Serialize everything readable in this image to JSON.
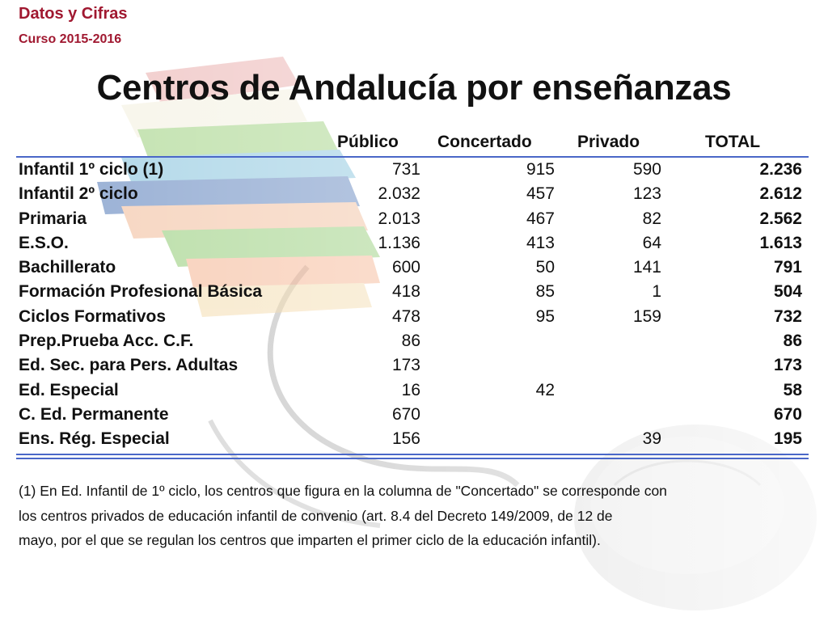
{
  "header": {
    "brand_title": "Datos y Cifras",
    "brand_course": "Curso 2015-2016",
    "page_title": "Centros de Andalucía por enseñanzas"
  },
  "table": {
    "columns": [
      "Público",
      "Concertado",
      "Privado",
      "TOTAL"
    ],
    "rows": [
      {
        "label": "Infantil 1º ciclo (1)",
        "publico": "731",
        "concertado": "915",
        "privado": "590",
        "total": "2.236"
      },
      {
        "label": "Infantil 2º ciclo",
        "publico": "2.032",
        "concertado": "457",
        "privado": "123",
        "total": "2.612"
      },
      {
        "label": "Primaria",
        "publico": "2.013",
        "concertado": "467",
        "privado": "82",
        "total": "2.562"
      },
      {
        "label": "E.S.O.",
        "publico": "1.136",
        "concertado": "413",
        "privado": "64",
        "total": "1.613"
      },
      {
        "label": "Bachillerato",
        "publico": "600",
        "concertado": "50",
        "privado": "141",
        "total": "791"
      },
      {
        "label": "Formación Profesional Básica",
        "publico": "418",
        "concertado": "85",
        "privado": "1",
        "total": "504"
      },
      {
        "label": "Ciclos Formativos",
        "publico": "478",
        "concertado": "95",
        "privado": "159",
        "total": "732"
      },
      {
        "label": "Prep.Prueba Acc. C.F.",
        "publico": "86",
        "concertado": "",
        "privado": "",
        "total": "86"
      },
      {
        "label": "Ed. Sec. para Pers. Adultas",
        "publico": "173",
        "concertado": "",
        "privado": "",
        "total": "173"
      },
      {
        "label": "Ed. Especial",
        "publico": "16",
        "concertado": "42",
        "privado": "",
        "total": "58"
      },
      {
        "label": "C. Ed. Permanente",
        "publico": "670",
        "concertado": "",
        "privado": "",
        "total": "670"
      },
      {
        "label": "Ens. Rég. Especial",
        "publico": "156",
        "concertado": "",
        "privado": "39",
        "total": "195"
      }
    ]
  },
  "footnote": {
    "line1": "(1) En Ed. Infantil de 1º ciclo, los centros que figura en la columna de \"Concertado\" se corresponde con",
    "line2": "los centros privados de educación infantil de convenio (art. 8.4 del Decreto 149/2009, de 12 de",
    "line3": "mayo, por el que se regulan los centros que imparten el primer ciclo de la educación infantil)."
  },
  "colors": {
    "brand": "#a01830",
    "rule": "#4a67c8"
  },
  "background_image": "stack-of-books-and-computer-mouse"
}
